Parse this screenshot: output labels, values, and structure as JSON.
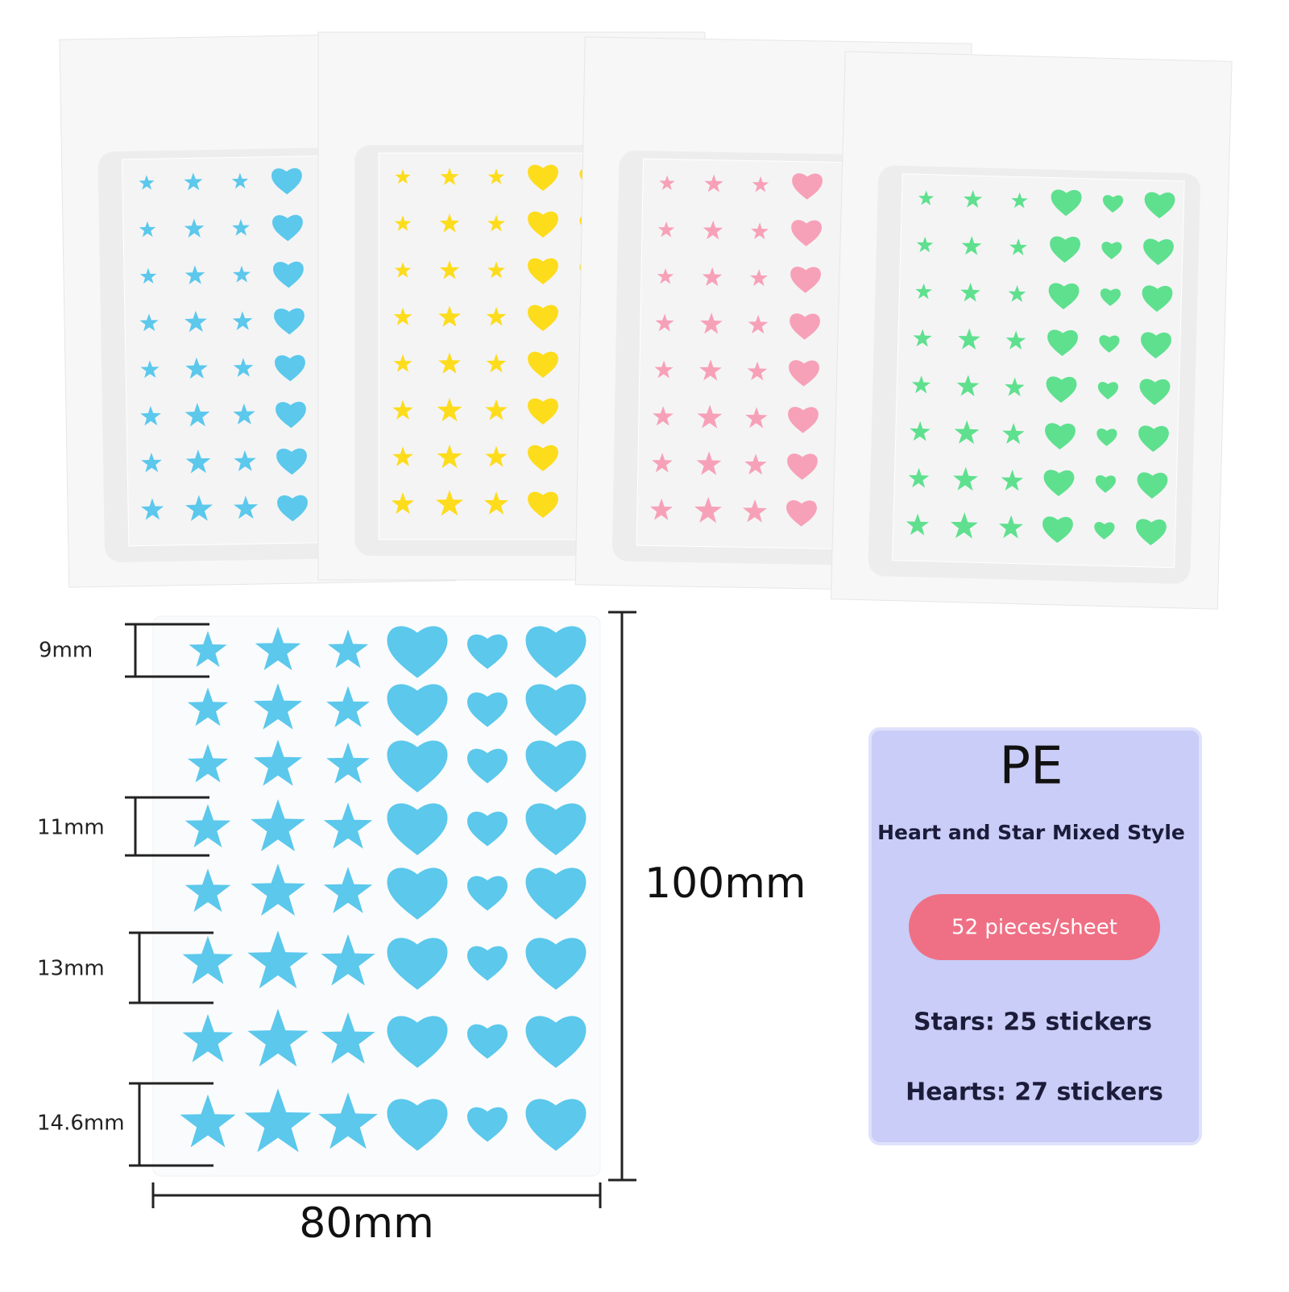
{
  "dimensions": {
    "sizes": [
      "9mm",
      "11mm",
      "13mm",
      "14.6mm"
    ],
    "height": "100mm",
    "width": "80mm"
  },
  "card": {
    "material": "PE",
    "style": "Heart and Star Mixed Style",
    "count": "52 pieces/sheet",
    "stars": "Stars: 25 stickers",
    "hearts": "Hearts: 27 stickers"
  }
}
